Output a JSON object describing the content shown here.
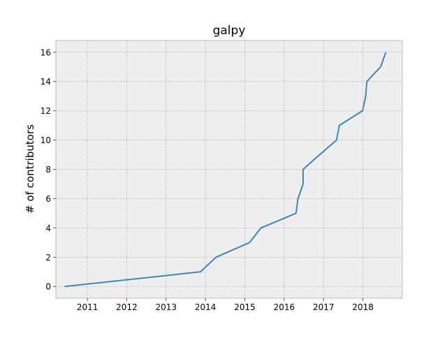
{
  "chart_data": {
    "type": "line",
    "title": "galpy",
    "xlabel": "",
    "ylabel": "# of contributors",
    "xlim": [
      2010.2,
      2019.0
    ],
    "ylim": [
      -0.8,
      16.8
    ],
    "grid": true,
    "x_ticks": [
      2011,
      2012,
      2013,
      2014,
      2015,
      2016,
      2017,
      2018
    ],
    "x_tick_labels": [
      "2011",
      "2012",
      "2013",
      "2014",
      "2015",
      "2016",
      "2017",
      "2018"
    ],
    "y_ticks": [
      0,
      2,
      4,
      6,
      8,
      10,
      12,
      14,
      16
    ],
    "y_tick_labels": [
      "0",
      "2",
      "4",
      "6",
      "8",
      "10",
      "12",
      "14",
      "16"
    ],
    "series": [
      {
        "color": "#348abd",
        "x": [
          2010.42,
          2013.87,
          2014.27,
          2015.12,
          2015.41,
          2016.3,
          2016.35,
          2016.48,
          2016.48,
          2016.9,
          2017.33,
          2017.4,
          2017.99,
          2018.07,
          2018.1,
          2018.45,
          2018.58
        ],
        "y": [
          0,
          1,
          2,
          3,
          4,
          5,
          6,
          7,
          8,
          9,
          10,
          11,
          12,
          13,
          14,
          15,
          16
        ]
      }
    ]
  }
}
